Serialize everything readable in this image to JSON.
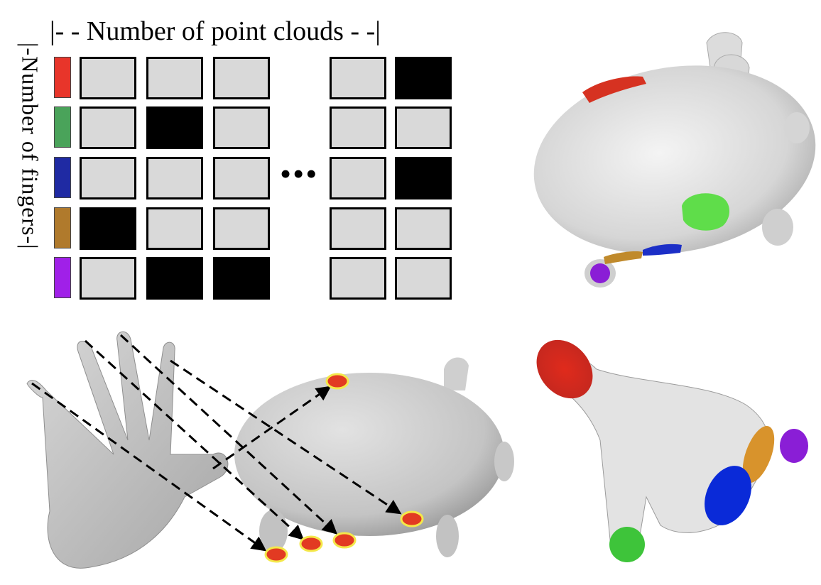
{
  "labels": {
    "top": "|- - Number of point clouds - -|",
    "side": "|-Number of fingers-|",
    "ellipsis": "•••"
  },
  "fingers": [
    {
      "color": "#e8352a"
    },
    {
      "color": "#4aa35a"
    },
    {
      "color": "#1f2aa3"
    },
    {
      "color": "#b07a2c"
    },
    {
      "color": "#a020e8"
    }
  ],
  "matrix": {
    "rows": [
      [
        false,
        false,
        false,
        false,
        true
      ],
      [
        false,
        true,
        false,
        false,
        false
      ],
      [
        false,
        false,
        false,
        false,
        true
      ],
      [
        true,
        false,
        false,
        false,
        false
      ],
      [
        false,
        true,
        true,
        false,
        false
      ]
    ]
  },
  "colors": {
    "cell_off": "#d9d9d9",
    "cell_on": "#000000",
    "contact_fill": "#e23a22",
    "contact_ring": "#f4e84a",
    "mesh": "#cfcfcf"
  }
}
